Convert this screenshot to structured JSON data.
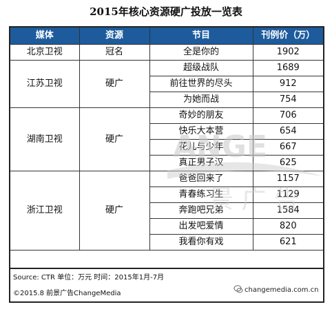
{
  "title": "2015年核心资源硬广投放一览表",
  "headers": [
    "媒体",
    "资源",
    "节目",
    "刊例价（万）"
  ],
  "groups": [
    {
      "media": "北京卫视",
      "resource": "冠名",
      "rows": [
        {
          "program": "全是你的",
          "price": "1902"
        }
      ]
    },
    {
      "media": "江苏卫视",
      "resource": "硬广",
      "rows": [
        {
          "program": "超级战队",
          "price": "1689"
        },
        {
          "program": "前往世界的尽头",
          "price": "912"
        },
        {
          "program": "为她而战",
          "price": "754"
        }
      ]
    },
    {
      "media": "湖南卫视",
      "resource": "硬广",
      "rows": [
        {
          "program": "奇妙的朋友",
          "price": "706"
        },
        {
          "program": "快乐大本营",
          "price": "654"
        },
        {
          "program": "花儿与少年",
          "price": "667"
        },
        {
          "program": "真正男子汉",
          "price": "625"
        }
      ]
    },
    {
      "media": "浙江卫视",
      "resource": "硬广",
      "rows": [
        {
          "program": "爸爸回来了",
          "price": "1157"
        },
        {
          "program": "青春练习生",
          "price": "1129"
        },
        {
          "program": "奔跑吧兄弟",
          "price": "1584"
        },
        {
          "program": "出发吧爱情",
          "price": "820"
        },
        {
          "program": "我看你有戏",
          "price": "621"
        }
      ]
    }
  ],
  "footer": {
    "source": "Source: CTR     单位：万元     时间：2015年1月-7月",
    "copyright": "©2015.8 前景广告ChangeMedia"
  },
  "watermark": {
    "brand": "ANGE",
    "brand_cn": "景 广 告",
    "site": "changemedia.com.cn"
  },
  "colors": {
    "header_bg": "#1d5b9c",
    "header_text": "#ffffff",
    "border": "#333333"
  }
}
